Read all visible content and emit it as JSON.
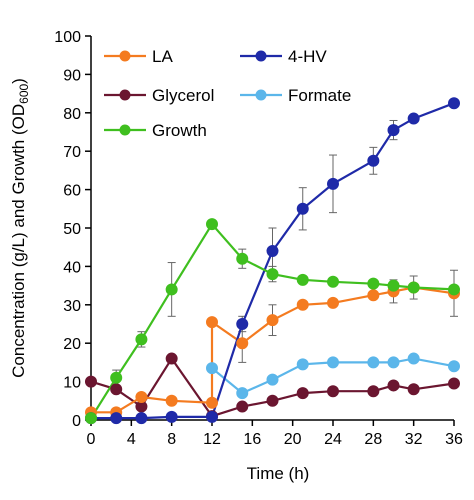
{
  "chart_data": {
    "type": "line",
    "xlabel": "Time (h)",
    "ylabel": {
      "main": "Concentration (g/L) and Growth (OD",
      "sub": "600",
      "close": ")"
    },
    "xlim": [
      0,
      36
    ],
    "ylim": [
      0,
      100
    ],
    "xticks": [
      0,
      4,
      8,
      12,
      16,
      20,
      24,
      28,
      32,
      36
    ],
    "yticks": [
      0,
      10,
      20,
      30,
      40,
      50,
      60,
      70,
      80,
      90,
      100
    ],
    "grid": false,
    "legend": "top-left, two columns",
    "series": [
      {
        "name": "LA",
        "color": "#f47b20",
        "points": [
          [
            0,
            2
          ],
          [
            2.5,
            2
          ],
          [
            5,
            6
          ],
          [
            8,
            5
          ],
          [
            12,
            4.5
          ],
          [
            12,
            25.5
          ],
          [
            15,
            20
          ],
          [
            18,
            26
          ],
          [
            21,
            30
          ],
          [
            24,
            30.5
          ],
          [
            28,
            32.5
          ],
          [
            30,
            33.5
          ],
          [
            32,
            34.5
          ],
          [
            36,
            33
          ]
        ],
        "err": [
          0,
          0,
          0,
          0,
          0,
          0,
          5,
          4,
          0,
          0,
          0,
          3,
          3,
          6
        ]
      },
      {
        "name": "4-HV",
        "color": "#1f2aa8",
        "points": [
          [
            0,
            0.5
          ],
          [
            2.5,
            0.5
          ],
          [
            5,
            0.5
          ],
          [
            8,
            0.8
          ],
          [
            12,
            0.8
          ],
          [
            15,
            25
          ],
          [
            18,
            44
          ],
          [
            21,
            55
          ],
          [
            24,
            61.5
          ],
          [
            28,
            67.5
          ],
          [
            30,
            75.5
          ],
          [
            32,
            78.5
          ],
          [
            36,
            82.5
          ]
        ],
        "err": [
          0,
          0,
          0,
          0,
          0,
          2,
          6,
          5.5,
          7.5,
          3.5,
          2.5,
          0,
          0
        ]
      },
      {
        "name": "Glycerol",
        "color": "#6b1630",
        "points": [
          [
            0,
            10
          ],
          [
            2.5,
            8
          ],
          [
            5,
            3.5
          ],
          [
            8,
            16
          ],
          [
            12,
            1
          ],
          [
            15,
            3.5
          ],
          [
            18,
            5
          ],
          [
            21,
            7
          ],
          [
            24,
            7.5
          ],
          [
            28,
            7.5
          ],
          [
            30,
            9
          ],
          [
            32,
            8
          ],
          [
            36,
            9.5
          ]
        ],
        "err": [
          0,
          0,
          0,
          0,
          0,
          0,
          0,
          0,
          0,
          0,
          0,
          0,
          0
        ]
      },
      {
        "name": "Formate",
        "color": "#5bb6ea",
        "points": [
          [
            12,
            13.5
          ],
          [
            15,
            7
          ],
          [
            18,
            10.5
          ],
          [
            21,
            14.5
          ],
          [
            24,
            15
          ],
          [
            28,
            15
          ],
          [
            30,
            15
          ],
          [
            32,
            16
          ],
          [
            36,
            14
          ]
        ],
        "err": [
          0,
          0,
          0,
          0,
          0,
          0,
          0,
          0,
          0
        ]
      },
      {
        "name": "Growth",
        "color": "#3fbf1f",
        "points": [
          [
            0,
            0.5
          ],
          [
            2.5,
            11
          ],
          [
            5,
            21
          ],
          [
            8,
            34
          ],
          [
            12,
            51
          ],
          [
            15,
            42
          ],
          [
            18,
            38
          ],
          [
            21,
            36.5
          ],
          [
            24,
            36
          ],
          [
            28,
            35.5
          ],
          [
            30,
            35
          ],
          [
            32,
            34.5
          ],
          [
            36,
            34
          ]
        ],
        "err": [
          0,
          2,
          2,
          7,
          1,
          2.5,
          2,
          0,
          0,
          0,
          0,
          0,
          0
        ]
      }
    ]
  }
}
